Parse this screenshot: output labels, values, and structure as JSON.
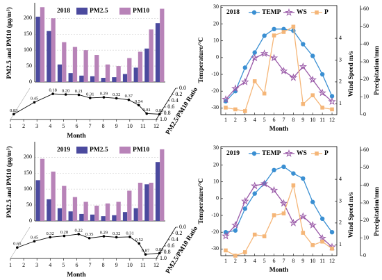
{
  "chart_data": [
    {
      "type": "bar",
      "label": "2018",
      "categories": [
        1,
        2,
        3,
        4,
        5,
        6,
        7,
        8,
        9,
        10,
        11,
        12
      ],
      "series": [
        {
          "name": "PM2.5",
          "color": "#4b4a9e",
          "values": [
            205,
            160,
            55,
            28,
            20,
            18,
            13,
            15,
            25,
            45,
            105,
            185
          ]
        },
        {
          "name": "PM10",
          "color": "#b883b8",
          "values": [
            235,
            200,
            125,
            110,
            100,
            85,
            55,
            50,
            75,
            95,
            165,
            230
          ]
        }
      ],
      "ylim": [
        0,
        240
      ],
      "yticks": [
        0,
        50,
        100,
        150,
        200
      ],
      "grid": true,
      "ylabel": "PM2.5 and PM10 (μg/m³)",
      "xlabel": "Month",
      "ratio": {
        "name": "PM2.5/PM10 Ratio",
        "lim": [
          0,
          1
        ],
        "ticks": [
          {
            "value": 0,
            "label": "0.0"
          },
          {
            "value": 0.2,
            "label": "0.2"
          },
          {
            "value": 0.4,
            "label": "0.4"
          },
          {
            "value": 0.6,
            "label": "0.6"
          },
          {
            "value": 0.8,
            "label": "0.8"
          },
          {
            "value": 1,
            "label": "1.0"
          }
        ],
        "values": [
          0.83,
          0.45,
          0.18,
          0.2,
          0.21,
          0.31,
          0.29,
          0.32,
          0.37,
          0.54,
          0.81,
          0.83
        ],
        "value_labels": [
          "0.83",
          "0.45",
          "0.18",
          "0.20",
          "0.21",
          "0.31",
          "0.29",
          "0.32",
          "0.37",
          "0.54",
          "0.81",
          "0.83"
        ]
      }
    },
    {
      "type": "line",
      "label": "2018",
      "categories": [
        1,
        2,
        3,
        4,
        5,
        6,
        7,
        8,
        9,
        10,
        11,
        12
      ],
      "series": [
        {
          "name": "TEMP",
          "color": "#3a8fd2",
          "marker": "circle",
          "axis": "y",
          "values": [
            -26,
            -20,
            -6,
            3,
            13,
            17,
            17,
            16,
            8,
            1,
            -10,
            -23
          ]
        },
        {
          "name": "WS",
          "color": "#9a5aa8",
          "marker": "star",
          "axis": "y2",
          "values": [
            1.2,
            1.7,
            2.0,
            3.1,
            3.3,
            3.1,
            2.5,
            2.2,
            2.7,
            2.1,
            1.5,
            1.1
          ]
        },
        {
          "name": "P",
          "color": "#f5b678",
          "marker": "square",
          "axis": "y3",
          "values": [
            4,
            3,
            2,
            19,
            12,
            45,
            47,
            50,
            6,
            11,
            4,
            3
          ]
        }
      ],
      "ylim": [
        -34,
        31
      ],
      "yticks": [
        -30,
        -20,
        -10,
        0,
        10,
        20,
        30
      ],
      "y2lim": [
        0.5,
        5.5
      ],
      "y2ticks": [
        1,
        2,
        3,
        4
      ],
      "y3lim": [
        0,
        62
      ],
      "y3ticks": [
        0,
        10,
        20,
        30,
        40,
        50,
        60
      ],
      "xlabel": "Month",
      "ylabel": "Temperature/°C",
      "y2label": "Wind Speed m/s",
      "y3label": "Precipitation/mm"
    },
    {
      "type": "bar",
      "label": "2019",
      "categories": [
        1,
        2,
        3,
        4,
        5,
        6,
        7,
        8,
        9,
        10,
        11,
        12
      ],
      "series": [
        {
          "name": "PM2.5",
          "color": "#4b4a9e",
          "values": [
            128,
            68,
            40,
            30,
            22,
            20,
            15,
            18,
            28,
            40,
            115,
            185
          ]
        },
        {
          "name": "PM10",
          "color": "#b883b8",
          "values": [
            195,
            155,
            110,
            75,
            60,
            48,
            55,
            60,
            95,
            120,
            120,
            225
          ]
        }
      ],
      "ylim": [
        0,
        240
      ],
      "yticks": [
        0,
        50,
        100,
        150,
        200
      ],
      "grid": true,
      "ylabel": "PM2.5 and PM10 (μg/m³)",
      "xlabel": "Month",
      "ratio": {
        "name": "PM2.5/PM10 Ratio",
        "lim": [
          0,
          1
        ],
        "ticks": [
          {
            "value": 0,
            "label": "0.0"
          },
          {
            "value": 0.2,
            "label": "0.2"
          },
          {
            "value": 0.4,
            "label": "0.4"
          },
          {
            "value": 0.6,
            "label": "0.6"
          },
          {
            "value": 0.8,
            "label": "0.8"
          },
          {
            "value": 1,
            "label": "1.0"
          }
        ],
        "values": [
          0.65,
          0.45,
          0.32,
          0.28,
          0.22,
          0.35,
          0.29,
          0.32,
          0.31,
          0.52,
          0.87,
          0.83
        ],
        "value_labels": [
          "0.65",
          "0.45",
          "0.32",
          "0.28",
          "0.22",
          "0.35",
          "0.29",
          "0.32",
          "0.31",
          "0.52",
          "0.87",
          "0.83"
        ]
      }
    },
    {
      "type": "line",
      "label": "2019",
      "categories": [
        1,
        2,
        3,
        4,
        5,
        6,
        7,
        8,
        9,
        10,
        11,
        12
      ],
      "series": [
        {
          "name": "TEMP",
          "color": "#3a8fd2",
          "marker": "circle",
          "axis": "y",
          "values": [
            -20,
            -19,
            -6,
            3,
            9,
            17,
            19,
            15,
            12,
            -2,
            -12,
            -20
          ]
        },
        {
          "name": "WS",
          "color": "#9a5aa8",
          "marker": "star",
          "axis": "y2",
          "values": [
            1.4,
            1.9,
            3.0,
            3.7,
            3.8,
            3.5,
            2.9,
            2.0,
            2.3,
            1.9,
            1.3,
            0.9
          ]
        },
        {
          "name": "P",
          "color": "#f5b678",
          "marker": "square",
          "axis": "y3",
          "values": [
            3,
            0,
            2,
            12,
            11,
            23,
            24,
            40,
            13,
            6,
            8,
            4
          ]
        }
      ],
      "ylim": [
        -34,
        31
      ],
      "yticks": [
        -30,
        -20,
        -10,
        0,
        10,
        20,
        30
      ],
      "y2lim": [
        0.5,
        5.5
      ],
      "y2ticks": [
        1,
        2,
        3,
        4
      ],
      "y3lim": [
        0,
        62
      ],
      "y3ticks": [
        0,
        10,
        20,
        30,
        40,
        50,
        60
      ],
      "xlabel": "Month",
      "ylabel": "Temperature/°C",
      "y2label": "Wind Speed m/s",
      "y3label": "Precipitation/mm"
    }
  ]
}
